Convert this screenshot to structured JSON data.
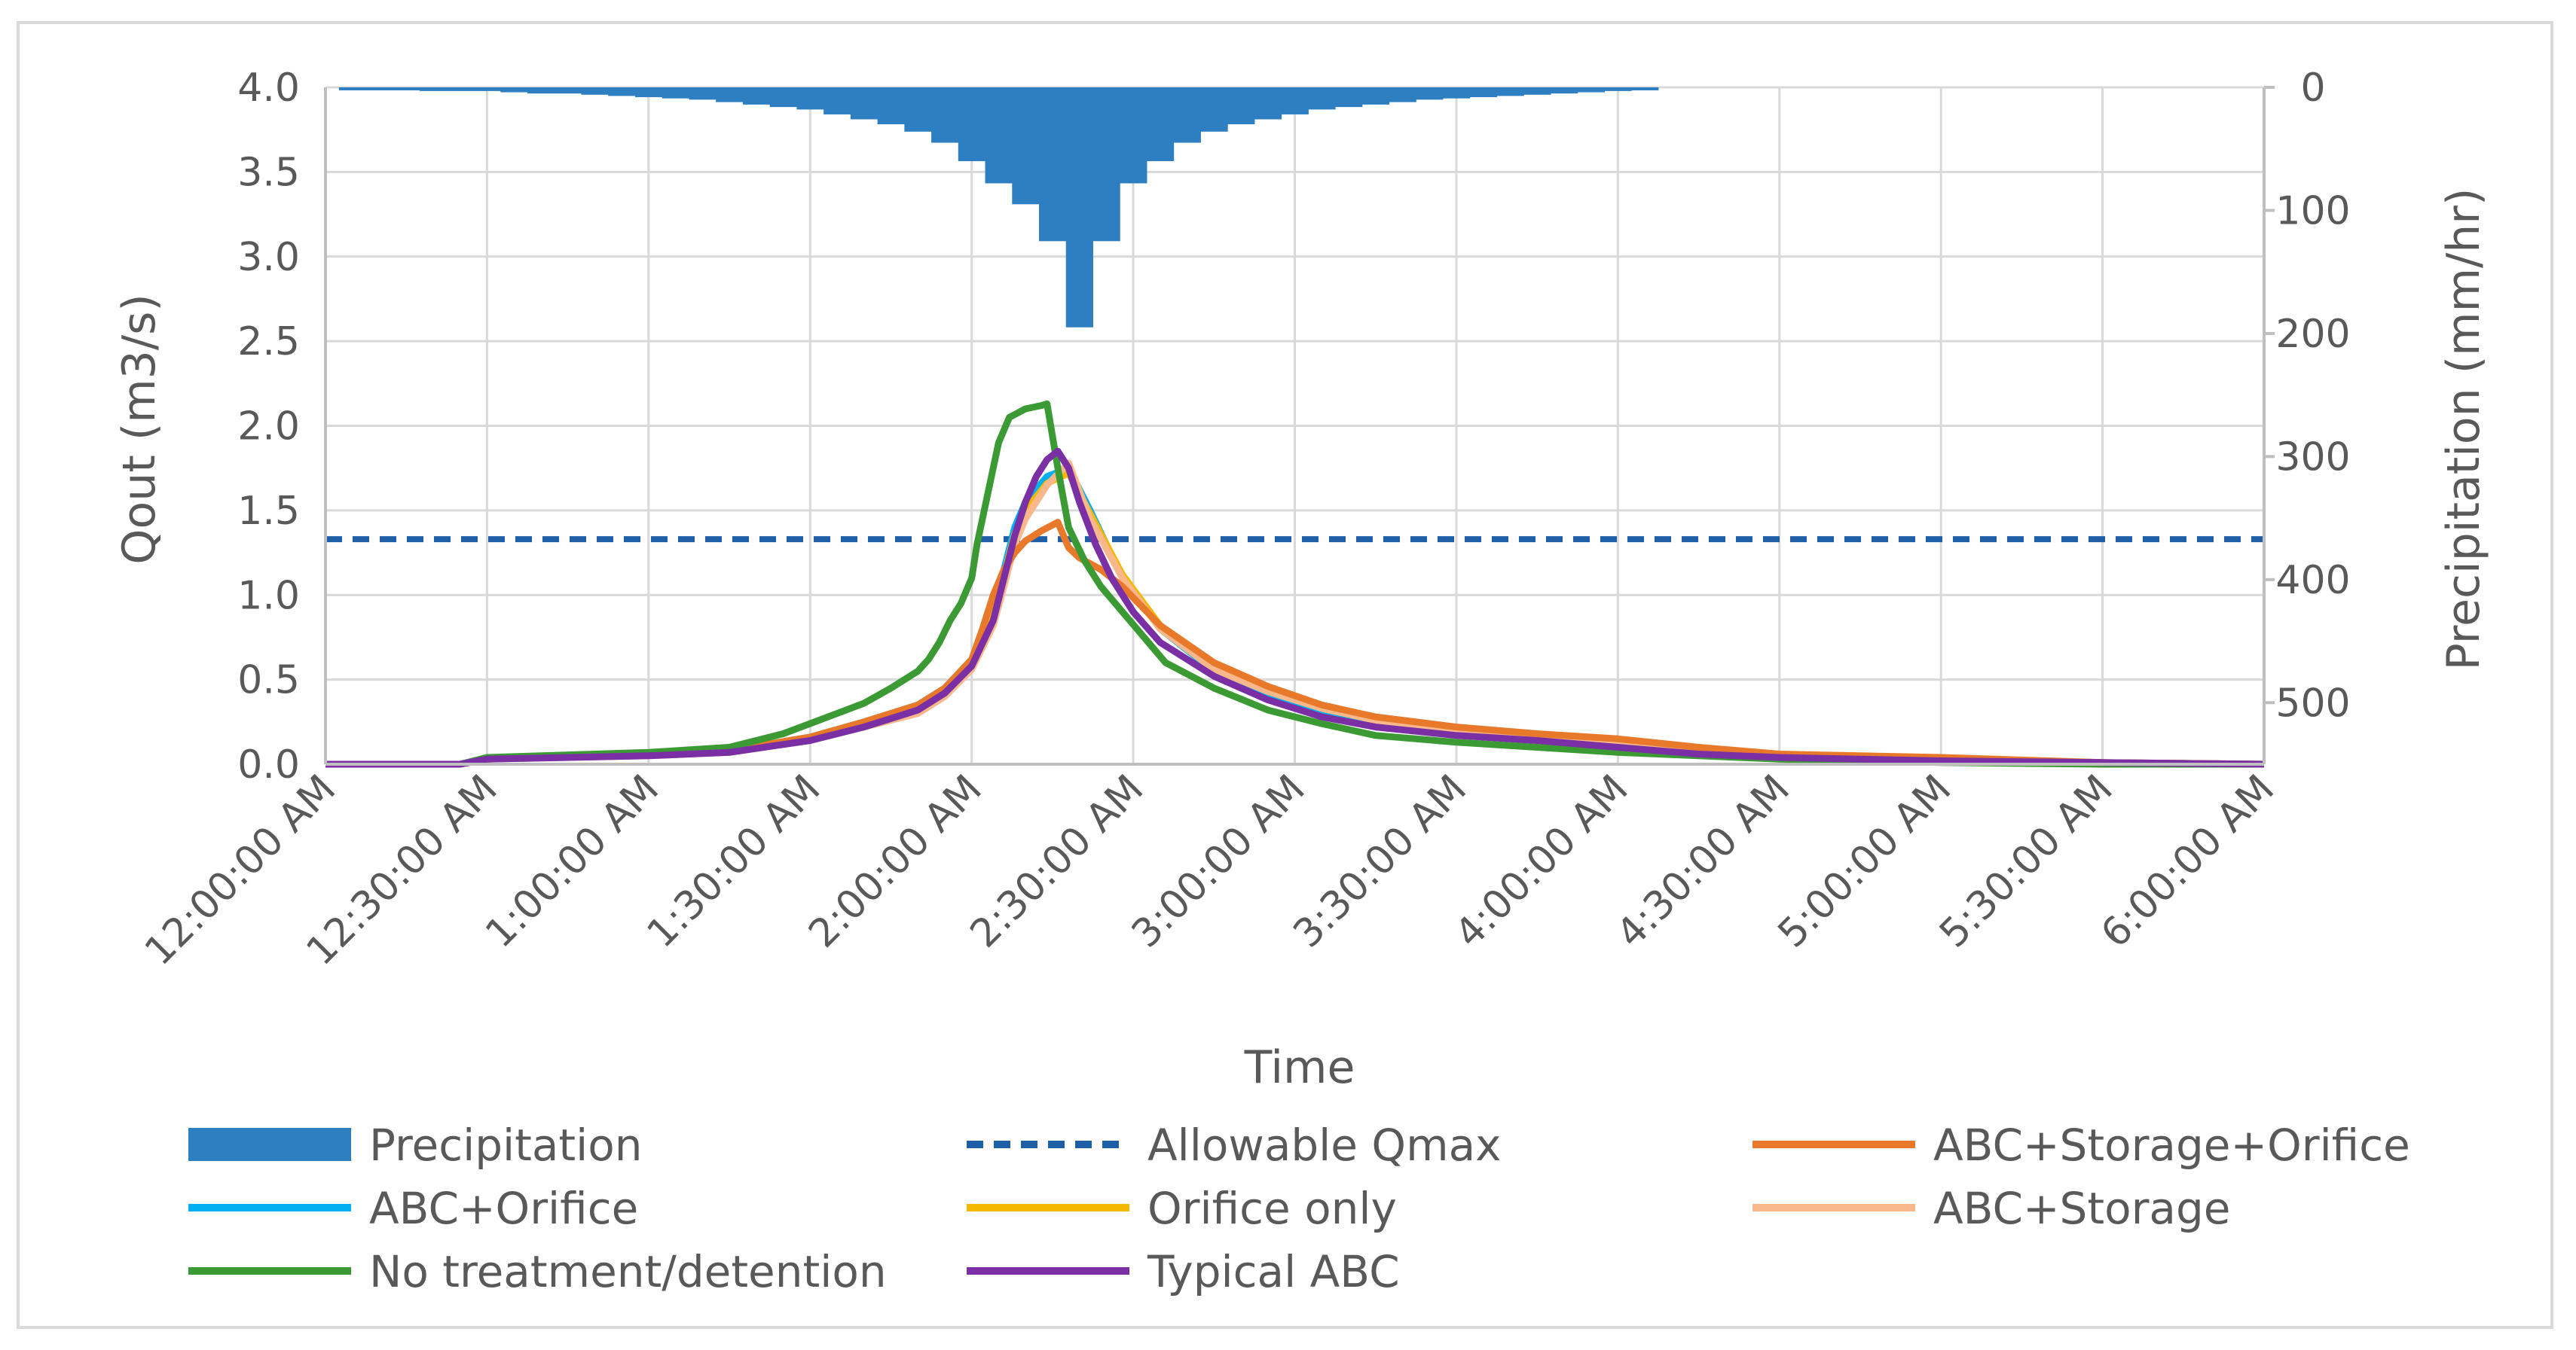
{
  "chart_data": {
    "type": "line",
    "xlabel": "Time",
    "ylabel": "Qout (m3/s)",
    "y2label": "Precipitation (mm/hr)",
    "x_tick_labels": [
      "12:00:00 AM",
      "12:30:00 AM",
      "1:00:00 AM",
      "1:30:00 AM",
      "2:00:00 AM",
      "2:30:00 AM",
      "3:00:00 AM",
      "3:30:00 AM",
      "4:00:00 AM",
      "4:30:00 AM",
      "5:00:00 AM",
      "5:30:00 AM",
      "6:00:00 AM"
    ],
    "x_range_minutes": [
      0,
      360
    ],
    "ylim": [
      0,
      4.0
    ],
    "y_tick_labels": [
      "0.0",
      "0.5",
      "1.0",
      "1.5",
      "2.0",
      "2.5",
      "3.0",
      "3.5",
      "4.0"
    ],
    "y2lim": [
      0,
      550
    ],
    "y2_reversed": true,
    "y2_tick_labels": [
      "0",
      "100",
      "200",
      "300",
      "400",
      "500"
    ],
    "grid": true,
    "legend_position": "bottom",
    "series": [
      {
        "name": "Precipitation",
        "kind": "bar-y2",
        "color": "#2e7fc1",
        "x": [
          5,
          10,
          15,
          20,
          25,
          30,
          35,
          40,
          45,
          50,
          55,
          60,
          65,
          70,
          75,
          80,
          85,
          90,
          95,
          100,
          105,
          110,
          115,
          120,
          125,
          130,
          135,
          140,
          145,
          150,
          155,
          160,
          165,
          170,
          175,
          180,
          185,
          190,
          195,
          200,
          205,
          210,
          215,
          220,
          225,
          230,
          235,
          240,
          245
        ],
        "values": [
          2,
          2,
          2,
          3,
          3,
          3,
          4,
          5,
          5,
          6,
          7,
          8,
          9,
          10,
          12,
          14,
          16,
          18,
          22,
          26,
          30,
          36,
          45,
          60,
          78,
          95,
          125,
          195,
          125,
          78,
          60,
          45,
          36,
          30,
          26,
          22,
          18,
          16,
          14,
          12,
          10,
          9,
          8,
          7,
          6,
          5,
          4,
          3,
          2
        ]
      },
      {
        "name": "Allowable Qmax",
        "kind": "dashed",
        "color": "#1f5fa8",
        "x": [
          0,
          360
        ],
        "values": [
          1.33,
          1.33
        ]
      },
      {
        "name": "ABC+Orifice",
        "color": "#00b0f0",
        "x": [
          0,
          25,
          30,
          60,
          75,
          90,
          100,
          110,
          115,
          120,
          124,
          126,
          128,
          130,
          134,
          138,
          142,
          148,
          155,
          165,
          175,
          185,
          195,
          210,
          225,
          240,
          255,
          270,
          300,
          330,
          360
        ],
        "values": [
          0,
          0,
          0.03,
          0.06,
          0.08,
          0.16,
          0.25,
          0.35,
          0.45,
          0.62,
          0.9,
          1.15,
          1.4,
          1.55,
          1.7,
          1.75,
          1.5,
          1.1,
          0.8,
          0.55,
          0.42,
          0.32,
          0.25,
          0.19,
          0.15,
          0.12,
          0.07,
          0.04,
          0.03,
          0.01,
          0.0
        ]
      },
      {
        "name": "Orifice only",
        "color": "#f5b800",
        "x": [
          0,
          25,
          30,
          60,
          75,
          90,
          100,
          110,
          115,
          120,
          124,
          126,
          128,
          130,
          134,
          138,
          142,
          148,
          155,
          165,
          175,
          185,
          195,
          210,
          225,
          240,
          255,
          270,
          300,
          330,
          360
        ],
        "values": [
          0,
          0,
          0.03,
          0.06,
          0.08,
          0.15,
          0.24,
          0.33,
          0.43,
          0.6,
          0.88,
          1.12,
          1.36,
          1.5,
          1.66,
          1.72,
          1.48,
          1.12,
          0.82,
          0.58,
          0.44,
          0.33,
          0.26,
          0.2,
          0.16,
          0.13,
          0.08,
          0.05,
          0.03,
          0.01,
          0.0
        ]
      },
      {
        "name": "ABC+Storage",
        "color": "#f8b88b",
        "x": [
          0,
          25,
          30,
          60,
          75,
          90,
          100,
          110,
          115,
          120,
          124,
          126,
          128,
          130,
          134,
          138,
          142,
          148,
          155,
          165,
          175,
          185,
          195,
          210,
          225,
          240,
          255,
          270,
          300,
          330,
          360
        ],
        "values": [
          0,
          0,
          0.03,
          0.05,
          0.07,
          0.14,
          0.22,
          0.3,
          0.4,
          0.56,
          0.82,
          1.05,
          1.3,
          1.45,
          1.65,
          1.78,
          1.45,
          1.1,
          0.8,
          0.56,
          0.43,
          0.33,
          0.26,
          0.2,
          0.16,
          0.13,
          0.08,
          0.05,
          0.03,
          0.01,
          0.0
        ]
      },
      {
        "name": "ABC+Storage+Orifice",
        "color": "#e8792a",
        "x": [
          0,
          25,
          30,
          60,
          75,
          90,
          100,
          110,
          115,
          120,
          122,
          124,
          126,
          128,
          130,
          133,
          136,
          138,
          140,
          144,
          148,
          155,
          165,
          175,
          185,
          195,
          210,
          225,
          240,
          255,
          270,
          300,
          330,
          360
        ],
        "values": [
          0,
          0,
          0.03,
          0.06,
          0.08,
          0.16,
          0.25,
          0.35,
          0.45,
          0.62,
          0.8,
          1.0,
          1.15,
          1.25,
          1.32,
          1.38,
          1.43,
          1.28,
          1.22,
          1.15,
          1.05,
          0.82,
          0.6,
          0.46,
          0.35,
          0.28,
          0.22,
          0.18,
          0.15,
          0.1,
          0.06,
          0.04,
          0.01,
          0.0
        ]
      },
      {
        "name": "No treatment/detention",
        "color": "#3c9a34",
        "x": [
          0,
          25,
          30,
          60,
          75,
          85,
          95,
          100,
          105,
          110,
          112,
          114,
          116,
          118,
          120,
          121,
          123,
          125,
          127,
          130,
          133,
          134,
          136,
          138,
          141,
          144,
          148,
          152,
          156,
          165,
          175,
          185,
          195,
          210,
          225,
          240,
          255,
          270,
          300,
          330,
          360
        ],
        "values": [
          0,
          0,
          0.04,
          0.07,
          0.1,
          0.18,
          0.3,
          0.36,
          0.45,
          0.55,
          0.62,
          0.72,
          0.85,
          0.95,
          1.1,
          1.3,
          1.6,
          1.9,
          2.05,
          2.1,
          2.12,
          2.13,
          1.75,
          1.4,
          1.2,
          1.05,
          0.9,
          0.75,
          0.6,
          0.45,
          0.32,
          0.24,
          0.17,
          0.13,
          0.1,
          0.07,
          0.05,
          0.03,
          0.01,
          0.0,
          0.0
        ]
      },
      {
        "name": "Typical ABC",
        "color": "#7a2fa4",
        "x": [
          0,
          25,
          30,
          60,
          75,
          90,
          100,
          110,
          115,
          120,
          124,
          126,
          128,
          130,
          132,
          134,
          136,
          138,
          140,
          143,
          146,
          150,
          155,
          165,
          175,
          185,
          195,
          210,
          225,
          240,
          255,
          270,
          300,
          330,
          360
        ],
        "values": [
          0,
          0,
          0.03,
          0.05,
          0.07,
          0.14,
          0.22,
          0.32,
          0.42,
          0.58,
          0.85,
          1.1,
          1.35,
          1.55,
          1.7,
          1.8,
          1.85,
          1.75,
          1.55,
          1.3,
          1.1,
          0.9,
          0.72,
          0.52,
          0.38,
          0.28,
          0.22,
          0.17,
          0.14,
          0.1,
          0.06,
          0.04,
          0.02,
          0.01,
          0.0
        ]
      }
    ],
    "legend_order": [
      "Precipitation",
      "Allowable Qmax",
      "ABC+Storage+Orifice",
      "ABC+Orifice",
      "Orifice only",
      "ABC+Storage",
      "No treatment/detention",
      "Typical ABC"
    ]
  }
}
